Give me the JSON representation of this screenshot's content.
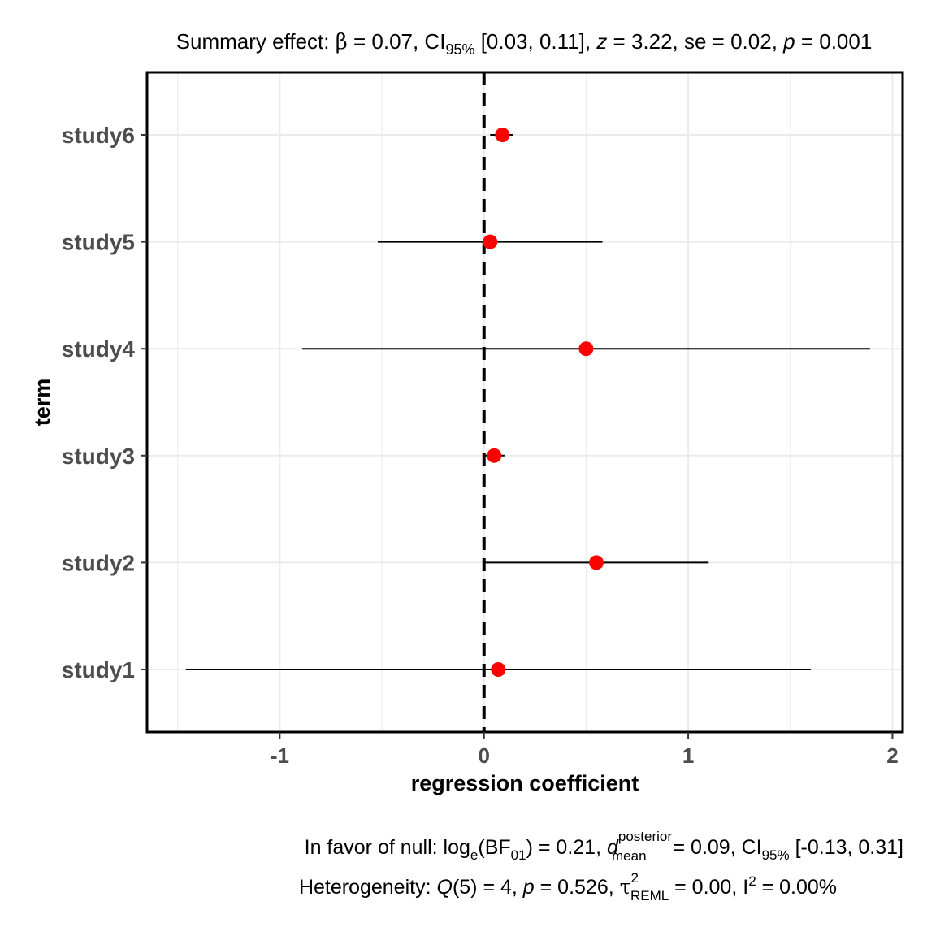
{
  "chart_data": {
    "type": "forest",
    "title": {
      "prefix": "Summary effect: ",
      "beta_symbol": "β",
      "beta_value": " = 0.07, CI",
      "ci_sub": "95%",
      "ci_value": " [0.03, 0.11], ",
      "z_symbol": "z",
      "z_value": " = 3.22, se = 0.02, ",
      "p_symbol": "p",
      "p_value": " = 0.001"
    },
    "xlabel": "regression coefficient",
    "ylabel": "term",
    "xlim": [
      -1.65,
      2.05
    ],
    "xticks": [
      {
        "value": -1,
        "label": "-1"
      },
      {
        "value": 0,
        "label": "0"
      },
      {
        "value": 1,
        "label": "1"
      },
      {
        "value": 2,
        "label": "2"
      }
    ],
    "reference_line": 0,
    "studies": [
      {
        "term": "study1",
        "estimate": 0.07,
        "ci_low": -1.46,
        "ci_high": 1.6
      },
      {
        "term": "study2",
        "estimate": 0.55,
        "ci_low": 0.0,
        "ci_high": 1.1
      },
      {
        "term": "study3",
        "estimate": 0.05,
        "ci_low": 0.0,
        "ci_high": 0.1
      },
      {
        "term": "study4",
        "estimate": 0.5,
        "ci_low": -0.89,
        "ci_high": 1.89
      },
      {
        "term": "study5",
        "estimate": 0.03,
        "ci_low": -0.52,
        "ci_high": 0.58
      },
      {
        "term": "study6",
        "estimate": 0.09,
        "ci_low": 0.03,
        "ci_high": 0.14
      }
    ],
    "point_color": "#ff0000",
    "grid": true,
    "caption": {
      "line1": {
        "t1": "In favor of null: log",
        "sub_e": "e",
        "t2": "(BF",
        "sub_01": "01",
        "t3": ") = 0.21, ",
        "d_symbol": "d",
        "sup_posterior": "posterior",
        "sub_mean": "mean",
        "t4": " = 0.09, CI",
        "sub_95": "95%",
        "t5": " [-0.13, 0.31]"
      },
      "line2": {
        "t1": "Heterogeneity: ",
        "q_symbol": "Q",
        "t2": "(5) = 4, ",
        "p_symbol": "p",
        "t3": " = 0.526, ",
        "tau_symbol": "τ",
        "sup_2": "2",
        "sub_reml": "REML",
        "t4": " = 0.00, I",
        "sup_i2": "2",
        "t5": " = 0.00%"
      }
    }
  }
}
